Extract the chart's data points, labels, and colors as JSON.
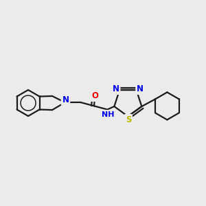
{
  "background_color": "#ebebeb",
  "bond_color": "#1a1a1a",
  "atom_colors": {
    "N": "#0000ee",
    "O": "#ee0000",
    "S": "#bbbb00",
    "C": "#1a1a1a"
  },
  "figsize": [
    3.0,
    3.0
  ],
  "dpi": 100
}
